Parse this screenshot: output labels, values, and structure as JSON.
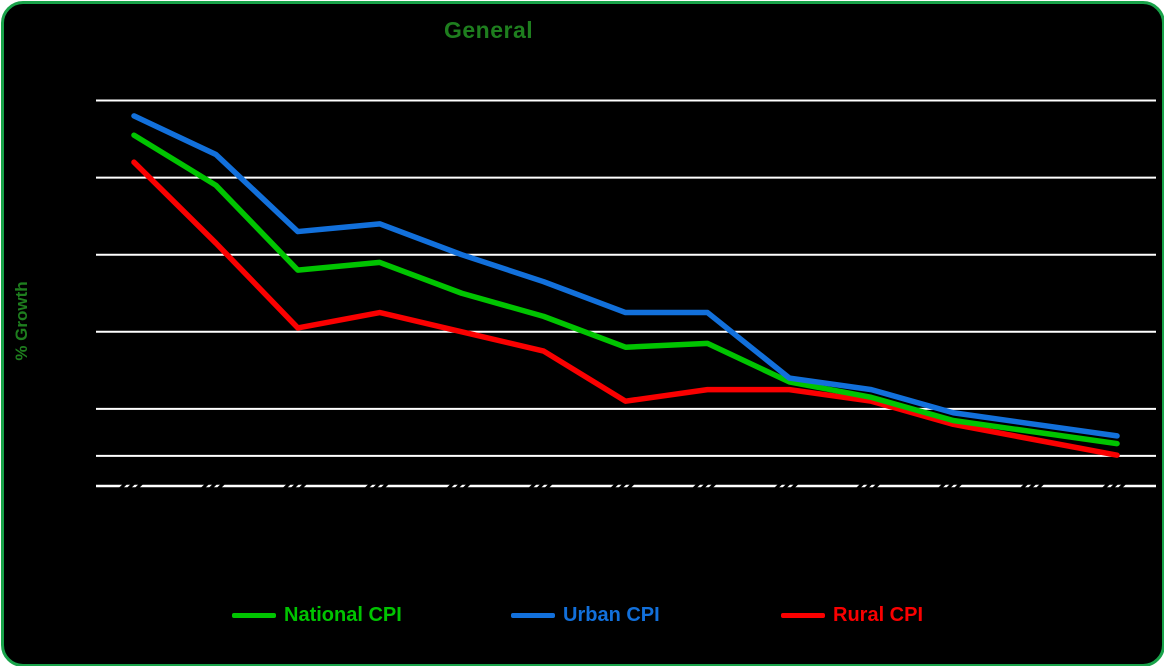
{
  "page": {
    "background": "#ffffff",
    "card_background": "#000000",
    "card_border_color": "#19A34A"
  },
  "title": {
    "text": "General",
    "color": "#1E7E1E"
  },
  "y_axis": {
    "label": "% Growth",
    "label_color": "#1E7E1E",
    "gridline_values": [
      10,
      8,
      6,
      4,
      2
    ],
    "extra_gridline_value": 0.78,
    "axis_value": 0,
    "gridline_color": "#FFFFFF",
    "tick_labels_visible": false
  },
  "x_axis": {
    "tick_count": 13,
    "tick_labels_visible": false,
    "tick_labels_note": "13 rotated tick labels rendered black-on-black (illegible in screenshot)"
  },
  "legend": {
    "items": [
      {
        "label": "National CPI",
        "color": "#00C400"
      },
      {
        "label": "Urban CPI",
        "color": "#1270DB"
      },
      {
        "label": "Rural CPI",
        "color": "#FA0000"
      }
    ]
  },
  "chart_data": {
    "type": "line",
    "title": "General",
    "xlabel": "",
    "ylabel": "% Growth",
    "ylim": [
      0,
      10.8
    ],
    "grid": true,
    "legend_position": "bottom",
    "x": [
      1,
      2,
      3,
      4,
      5,
      6,
      7,
      8,
      9,
      10,
      11,
      12,
      13
    ],
    "categories": [
      "",
      "",
      "",
      "",
      "",
      "",
      "",
      "",
      "",
      "",
      "",
      "",
      ""
    ],
    "series": [
      {
        "name": "Rural CPI",
        "color": "#FA0000",
        "values": [
          8.4,
          6.3,
          4.1,
          4.5,
          4.0,
          3.5,
          2.2,
          2.5,
          2.5,
          2.2,
          1.6,
          1.2,
          0.8
        ]
      },
      {
        "name": "National CPI",
        "color": "#00C400",
        "values": [
          9.1,
          7.8,
          5.6,
          5.8,
          5.0,
          4.4,
          3.6,
          3.7,
          2.7,
          2.3,
          1.7,
          1.4,
          1.1
        ]
      },
      {
        "name": "Urban CPI",
        "color": "#1270DB",
        "values": [
          9.6,
          8.6,
          6.6,
          6.8,
          6.0,
          5.3,
          4.5,
          4.5,
          2.8,
          2.5,
          1.9,
          1.6,
          1.3
        ]
      }
    ]
  }
}
